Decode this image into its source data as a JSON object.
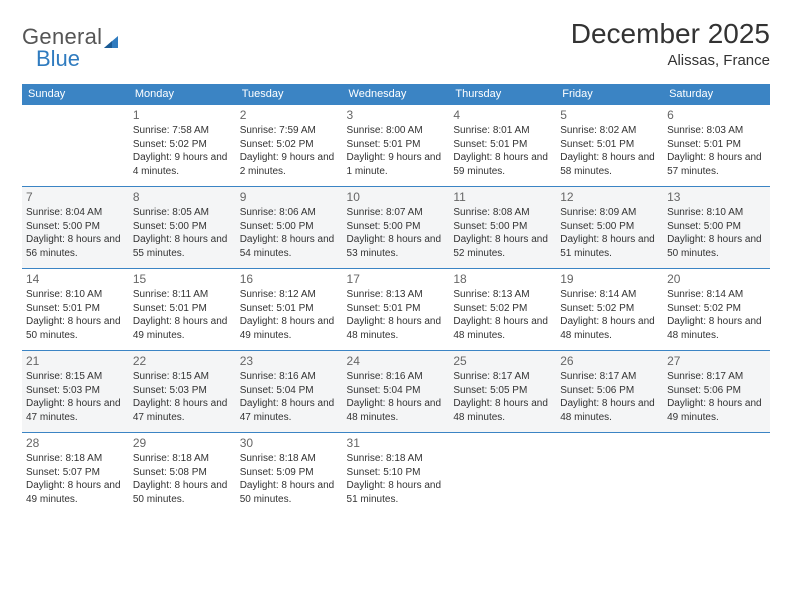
{
  "logo": {
    "text1": "General",
    "text2": "Blue"
  },
  "title": "December 2025",
  "location": "Alissas, France",
  "day_headers": [
    "Sunday",
    "Monday",
    "Tuesday",
    "Wednesday",
    "Thursday",
    "Friday",
    "Saturday"
  ],
  "colors": {
    "header_bg": "#3b84c4",
    "header_text": "#ffffff",
    "row_alt_bg": "#f4f5f6",
    "border": "#3b84c4",
    "logo_accent": "#2f7bbf",
    "text": "#333333"
  },
  "weeks": [
    {
      "alt": false,
      "days": [
        {
          "n": "",
          "sunrise": "",
          "sunset": "",
          "daylight": ""
        },
        {
          "n": "1",
          "sunrise": "Sunrise: 7:58 AM",
          "sunset": "Sunset: 5:02 PM",
          "daylight": "Daylight: 9 hours and 4 minutes."
        },
        {
          "n": "2",
          "sunrise": "Sunrise: 7:59 AM",
          "sunset": "Sunset: 5:02 PM",
          "daylight": "Daylight: 9 hours and 2 minutes."
        },
        {
          "n": "3",
          "sunrise": "Sunrise: 8:00 AM",
          "sunset": "Sunset: 5:01 PM",
          "daylight": "Daylight: 9 hours and 1 minute."
        },
        {
          "n": "4",
          "sunrise": "Sunrise: 8:01 AM",
          "sunset": "Sunset: 5:01 PM",
          "daylight": "Daylight: 8 hours and 59 minutes."
        },
        {
          "n": "5",
          "sunrise": "Sunrise: 8:02 AM",
          "sunset": "Sunset: 5:01 PM",
          "daylight": "Daylight: 8 hours and 58 minutes."
        },
        {
          "n": "6",
          "sunrise": "Sunrise: 8:03 AM",
          "sunset": "Sunset: 5:01 PM",
          "daylight": "Daylight: 8 hours and 57 minutes."
        }
      ]
    },
    {
      "alt": true,
      "days": [
        {
          "n": "7",
          "sunrise": "Sunrise: 8:04 AM",
          "sunset": "Sunset: 5:00 PM",
          "daylight": "Daylight: 8 hours and 56 minutes."
        },
        {
          "n": "8",
          "sunrise": "Sunrise: 8:05 AM",
          "sunset": "Sunset: 5:00 PM",
          "daylight": "Daylight: 8 hours and 55 minutes."
        },
        {
          "n": "9",
          "sunrise": "Sunrise: 8:06 AM",
          "sunset": "Sunset: 5:00 PM",
          "daylight": "Daylight: 8 hours and 54 minutes."
        },
        {
          "n": "10",
          "sunrise": "Sunrise: 8:07 AM",
          "sunset": "Sunset: 5:00 PM",
          "daylight": "Daylight: 8 hours and 53 minutes."
        },
        {
          "n": "11",
          "sunrise": "Sunrise: 8:08 AM",
          "sunset": "Sunset: 5:00 PM",
          "daylight": "Daylight: 8 hours and 52 minutes."
        },
        {
          "n": "12",
          "sunrise": "Sunrise: 8:09 AM",
          "sunset": "Sunset: 5:00 PM",
          "daylight": "Daylight: 8 hours and 51 minutes."
        },
        {
          "n": "13",
          "sunrise": "Sunrise: 8:10 AM",
          "sunset": "Sunset: 5:00 PM",
          "daylight": "Daylight: 8 hours and 50 minutes."
        }
      ]
    },
    {
      "alt": false,
      "days": [
        {
          "n": "14",
          "sunrise": "Sunrise: 8:10 AM",
          "sunset": "Sunset: 5:01 PM",
          "daylight": "Daylight: 8 hours and 50 minutes."
        },
        {
          "n": "15",
          "sunrise": "Sunrise: 8:11 AM",
          "sunset": "Sunset: 5:01 PM",
          "daylight": "Daylight: 8 hours and 49 minutes."
        },
        {
          "n": "16",
          "sunrise": "Sunrise: 8:12 AM",
          "sunset": "Sunset: 5:01 PM",
          "daylight": "Daylight: 8 hours and 49 minutes."
        },
        {
          "n": "17",
          "sunrise": "Sunrise: 8:13 AM",
          "sunset": "Sunset: 5:01 PM",
          "daylight": "Daylight: 8 hours and 48 minutes."
        },
        {
          "n": "18",
          "sunrise": "Sunrise: 8:13 AM",
          "sunset": "Sunset: 5:02 PM",
          "daylight": "Daylight: 8 hours and 48 minutes."
        },
        {
          "n": "19",
          "sunrise": "Sunrise: 8:14 AM",
          "sunset": "Sunset: 5:02 PM",
          "daylight": "Daylight: 8 hours and 48 minutes."
        },
        {
          "n": "20",
          "sunrise": "Sunrise: 8:14 AM",
          "sunset": "Sunset: 5:02 PM",
          "daylight": "Daylight: 8 hours and 48 minutes."
        }
      ]
    },
    {
      "alt": true,
      "days": [
        {
          "n": "21",
          "sunrise": "Sunrise: 8:15 AM",
          "sunset": "Sunset: 5:03 PM",
          "daylight": "Daylight: 8 hours and 47 minutes."
        },
        {
          "n": "22",
          "sunrise": "Sunrise: 8:15 AM",
          "sunset": "Sunset: 5:03 PM",
          "daylight": "Daylight: 8 hours and 47 minutes."
        },
        {
          "n": "23",
          "sunrise": "Sunrise: 8:16 AM",
          "sunset": "Sunset: 5:04 PM",
          "daylight": "Daylight: 8 hours and 47 minutes."
        },
        {
          "n": "24",
          "sunrise": "Sunrise: 8:16 AM",
          "sunset": "Sunset: 5:04 PM",
          "daylight": "Daylight: 8 hours and 48 minutes."
        },
        {
          "n": "25",
          "sunrise": "Sunrise: 8:17 AM",
          "sunset": "Sunset: 5:05 PM",
          "daylight": "Daylight: 8 hours and 48 minutes."
        },
        {
          "n": "26",
          "sunrise": "Sunrise: 8:17 AM",
          "sunset": "Sunset: 5:06 PM",
          "daylight": "Daylight: 8 hours and 48 minutes."
        },
        {
          "n": "27",
          "sunrise": "Sunrise: 8:17 AM",
          "sunset": "Sunset: 5:06 PM",
          "daylight": "Daylight: 8 hours and 49 minutes."
        }
      ]
    },
    {
      "alt": false,
      "days": [
        {
          "n": "28",
          "sunrise": "Sunrise: 8:18 AM",
          "sunset": "Sunset: 5:07 PM",
          "daylight": "Daylight: 8 hours and 49 minutes."
        },
        {
          "n": "29",
          "sunrise": "Sunrise: 8:18 AM",
          "sunset": "Sunset: 5:08 PM",
          "daylight": "Daylight: 8 hours and 50 minutes."
        },
        {
          "n": "30",
          "sunrise": "Sunrise: 8:18 AM",
          "sunset": "Sunset: 5:09 PM",
          "daylight": "Daylight: 8 hours and 50 minutes."
        },
        {
          "n": "31",
          "sunrise": "Sunrise: 8:18 AM",
          "sunset": "Sunset: 5:10 PM",
          "daylight": "Daylight: 8 hours and 51 minutes."
        },
        {
          "n": "",
          "sunrise": "",
          "sunset": "",
          "daylight": ""
        },
        {
          "n": "",
          "sunrise": "",
          "sunset": "",
          "daylight": ""
        },
        {
          "n": "",
          "sunrise": "",
          "sunset": "",
          "daylight": ""
        }
      ]
    }
  ]
}
